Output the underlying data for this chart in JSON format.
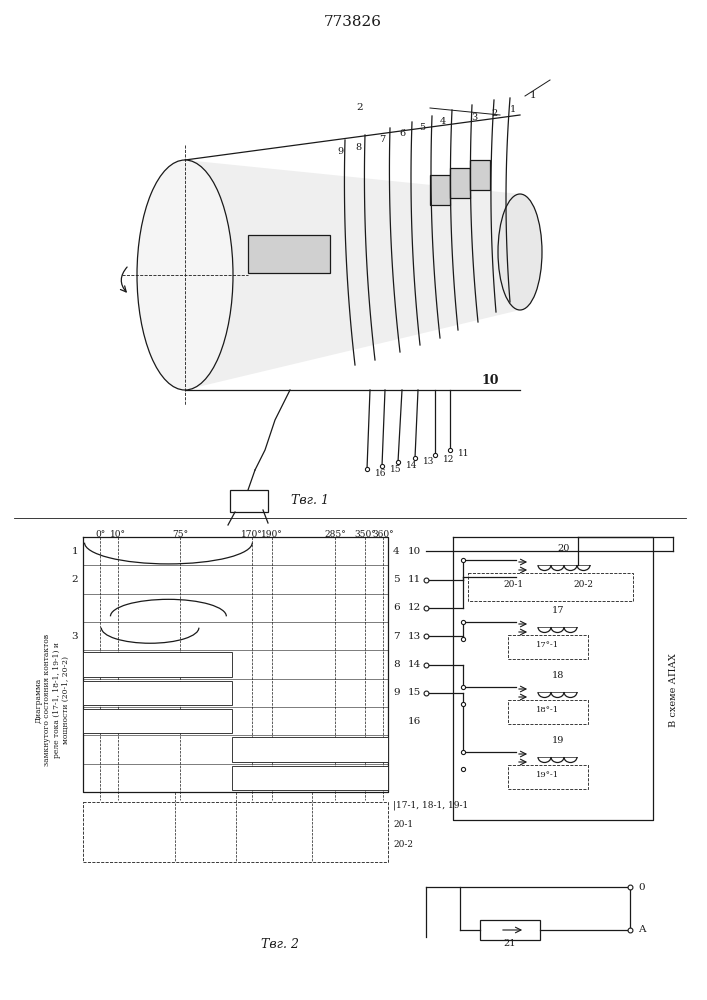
{
  "title": "773826",
  "bg_color": "#ffffff",
  "line_color": "#1a1a1a",
  "fig1_caption": "Τвг. 1",
  "fig2_caption": "Τвг. 2",
  "angle_labels": [
    "0°",
    "10°",
    "75°",
    "170°",
    "190°",
    "285°",
    "350°",
    "360°"
  ],
  "left_rotated_text": [
    "Диаграмма",
    "замкнутого состояния контактов",
    "реле тока (17-1, 18-1, 19-1) и",
    "мощности (20-1, 20-2)"
  ],
  "right_vertical_text": "В схеме АПАХ"
}
